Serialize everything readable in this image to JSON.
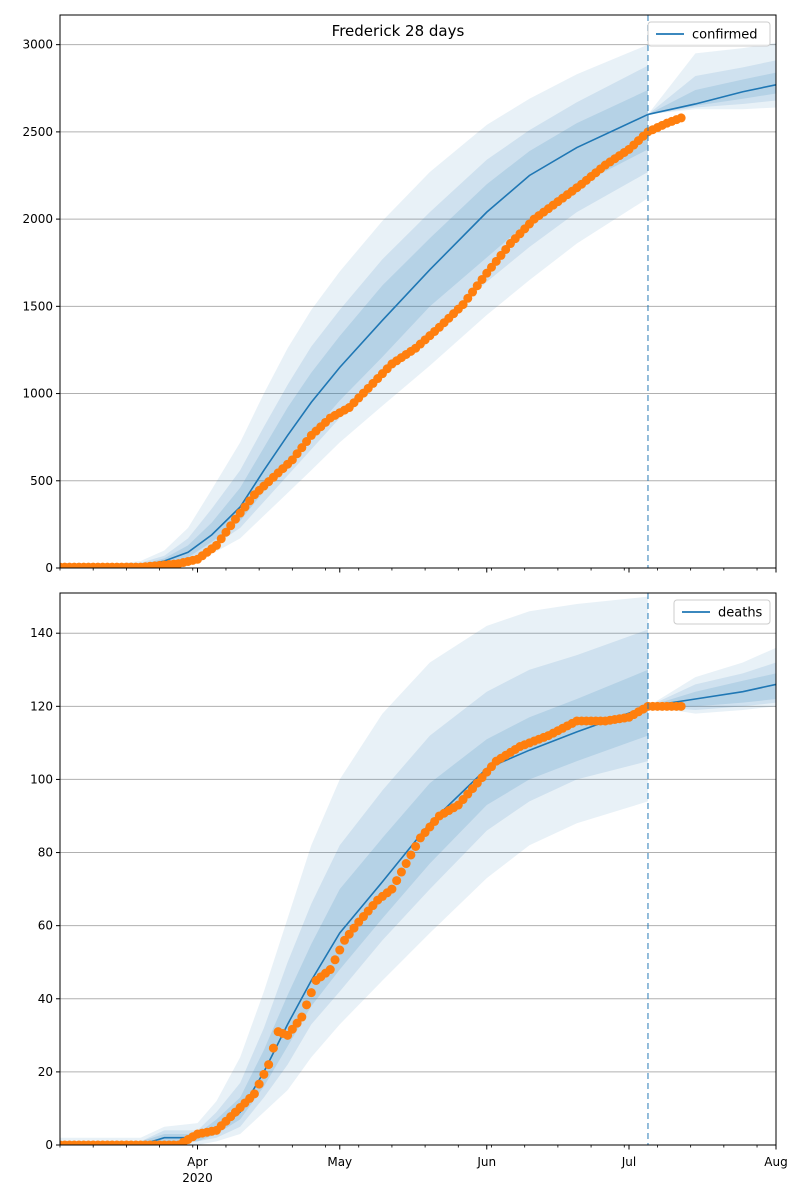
{
  "chart_data": [
    {
      "type": "line",
      "title": "Frederick 28 days",
      "legend": {
        "label": "confirmed",
        "placement": "top-right"
      },
      "grid": "horizontal",
      "ylim": [
        0,
        3170
      ],
      "xlim": [
        "2020-03-03",
        "2020-08-01"
      ],
      "yticks": [
        0,
        500,
        1000,
        1500,
        2000,
        2500,
        3000
      ],
      "forecast_start": "2020-07-05",
      "colors": {
        "model": "#1f77b4",
        "observed": "#ff7f0e",
        "band": "#1f77b4"
      },
      "model": {
        "x": [
          "2020-03-03",
          "2020-03-10",
          "2020-03-20",
          "2020-03-25",
          "2020-03-30",
          "2020-04-04",
          "2020-04-10",
          "2020-04-15",
          "2020-04-20",
          "2020-04-25",
          "2020-05-01",
          "2020-05-10",
          "2020-05-20",
          "2020-06-01",
          "2020-06-10",
          "2020-06-20",
          "2020-07-05",
          "2020-07-15",
          "2020-07-25",
          "2020-08-01"
        ],
        "y": [
          5,
          5,
          10,
          40,
          90,
          190,
          350,
          560,
          760,
          950,
          1150,
          1420,
          1710,
          2040,
          2250,
          2410,
          2600,
          2660,
          2730,
          2770
        ]
      },
      "bands": [
        {
          "upper": [
            5,
            10,
            40,
            100,
            230,
            450,
            720,
            1000,
            1260,
            1480,
            1700,
            1990,
            2270,
            2540,
            2690,
            2830,
            3000,
            2950,
            2980,
            3010
          ],
          "lower": [
            0,
            0,
            0,
            10,
            30,
            80,
            170,
            300,
            430,
            560,
            720,
            930,
            1160,
            1450,
            1650,
            1860,
            2120,
            2630,
            2630,
            2640
          ]
        },
        {
          "upper": [
            5,
            8,
            30,
            70,
            170,
            340,
            560,
            810,
            1050,
            1270,
            1480,
            1770,
            2040,
            2340,
            2510,
            2670,
            2880,
            2820,
            2870,
            2910
          ],
          "lower": [
            0,
            0,
            2,
            20,
            45,
            120,
            230,
            380,
            530,
            680,
            860,
            1090,
            1350,
            1640,
            1840,
            2040,
            2270,
            2640,
            2660,
            2680
          ]
        },
        {
          "upper": [
            5,
            6,
            20,
            55,
            130,
            260,
            460,
            690,
            920,
            1120,
            1330,
            1620,
            1890,
            2200,
            2390,
            2550,
            2740,
            2740,
            2800,
            2840
          ],
          "lower": [
            1,
            2,
            5,
            28,
            60,
            150,
            270,
            440,
            600,
            770,
            960,
            1210,
            1500,
            1780,
            1990,
            2190,
            2400,
            2650,
            2690,
            2720
          ]
        }
      ],
      "observed": {
        "x": [
          "2020-03-03",
          "2020-03-10",
          "2020-03-15",
          "2020-03-20",
          "2020-03-24",
          "2020-03-28",
          "2020-04-01",
          "2020-04-05",
          "2020-04-09",
          "2020-04-13",
          "2020-04-17",
          "2020-04-21",
          "2020-04-25",
          "2020-04-29",
          "2020-05-03",
          "2020-05-07",
          "2020-05-12",
          "2020-05-17",
          "2020-05-22",
          "2020-05-27",
          "2020-06-01",
          "2020-06-06",
          "2020-06-11",
          "2020-06-16",
          "2020-06-21",
          "2020-06-26",
          "2020-07-01",
          "2020-07-05",
          "2020-07-09",
          "2020-07-12"
        ],
        "y": [
          5,
          5,
          5,
          5,
          15,
          25,
          50,
          130,
          280,
          420,
          520,
          620,
          760,
          860,
          920,
          1030,
          1170,
          1260,
          1380,
          1510,
          1690,
          1860,
          2000,
          2100,
          2200,
          2310,
          2400,
          2500,
          2550,
          2580
        ]
      }
    },
    {
      "type": "line",
      "legend": {
        "label": "deaths",
        "placement": "top-right"
      },
      "grid": "horizontal",
      "ylim": [
        0,
        151
      ],
      "xlim": [
        "2020-03-03",
        "2020-08-01"
      ],
      "yticks": [
        0,
        20,
        40,
        60,
        80,
        100,
        120,
        140
      ],
      "xticks": [
        {
          "date": "2020-04-01",
          "label": "Apr",
          "sublabel": "2020"
        },
        {
          "date": "2020-05-01",
          "label": "May",
          "sublabel": ""
        },
        {
          "date": "2020-06-01",
          "label": "Jun",
          "sublabel": ""
        },
        {
          "date": "2020-07-01",
          "label": "Jul",
          "sublabel": ""
        },
        {
          "date": "2020-08-01",
          "label": "Aug",
          "sublabel": ""
        }
      ],
      "forecast_start": "2020-07-05",
      "colors": {
        "model": "#1f77b4",
        "observed": "#ff7f0e",
        "band": "#1f77b4"
      },
      "model": {
        "x": [
          "2020-03-03",
          "2020-03-20",
          "2020-03-25",
          "2020-04-01",
          "2020-04-05",
          "2020-04-10",
          "2020-04-15",
          "2020-04-20",
          "2020-04-25",
          "2020-05-01",
          "2020-05-10",
          "2020-05-20",
          "2020-06-01",
          "2020-06-10",
          "2020-06-20",
          "2020-07-05",
          "2020-07-15",
          "2020-07-25",
          "2020-08-01"
        ],
        "y": [
          0,
          0,
          2,
          2,
          4,
          9,
          20,
          33,
          45,
          58,
          72,
          88,
          103,
          108,
          113,
          120,
          122,
          124,
          126
        ]
      },
      "bands": [
        {
          "upper": [
            2,
            2,
            5,
            6,
            12,
            24,
            42,
            62,
            82,
            100,
            118,
            132,
            142,
            146,
            148,
            150,
            128,
            132,
            136
          ],
          "lower": [
            0,
            0,
            0,
            0,
            1,
            3,
            9,
            15,
            24,
            33,
            45,
            58,
            73,
            82,
            88,
            94,
            118,
            119,
            120
          ]
        },
        {
          "upper": [
            1,
            1,
            4,
            4,
            9,
            17,
            32,
            50,
            66,
            82,
            97,
            112,
            124,
            130,
            134,
            141,
            126,
            129,
            132
          ],
          "lower": [
            0,
            0,
            0,
            1,
            2,
            5,
            13,
            22,
            33,
            42,
            56,
            70,
            86,
            94,
            100,
            105,
            119,
            120,
            121
          ]
        },
        {
          "upper": [
            1,
            1,
            3,
            3,
            7,
            13,
            26,
            41,
            55,
            70,
            84,
            99,
            111,
            117,
            122,
            130,
            124,
            127,
            129
          ],
          "lower": [
            0,
            0,
            1,
            1,
            3,
            7,
            16,
            27,
            38,
            48,
            62,
            77,
            93,
            100,
            105,
            112,
            120,
            121,
            122
          ]
        }
      ],
      "observed": {
        "x": [
          "2020-03-03",
          "2020-03-15",
          "2020-03-28",
          "2020-04-01",
          "2020-04-05",
          "2020-04-09",
          "2020-04-13",
          "2020-04-16",
          "2020-04-18",
          "2020-04-20",
          "2020-04-23",
          "2020-04-26",
          "2020-04-29",
          "2020-05-02",
          "2020-05-05",
          "2020-05-09",
          "2020-05-12",
          "2020-05-15",
          "2020-05-18",
          "2020-05-22",
          "2020-05-26",
          "2020-05-30",
          "2020-06-03",
          "2020-06-08",
          "2020-06-14",
          "2020-06-20",
          "2020-06-26",
          "2020-07-01",
          "2020-07-05",
          "2020-07-09",
          "2020-07-12"
        ],
        "y": [
          0,
          0,
          0,
          3,
          4,
          9,
          14,
          22,
          31,
          30,
          35,
          45,
          48,
          56,
          61,
          67,
          70,
          77,
          84,
          90,
          93,
          99,
          105,
          109,
          112,
          116,
          116,
          117,
          120,
          120,
          120
        ]
      }
    }
  ]
}
